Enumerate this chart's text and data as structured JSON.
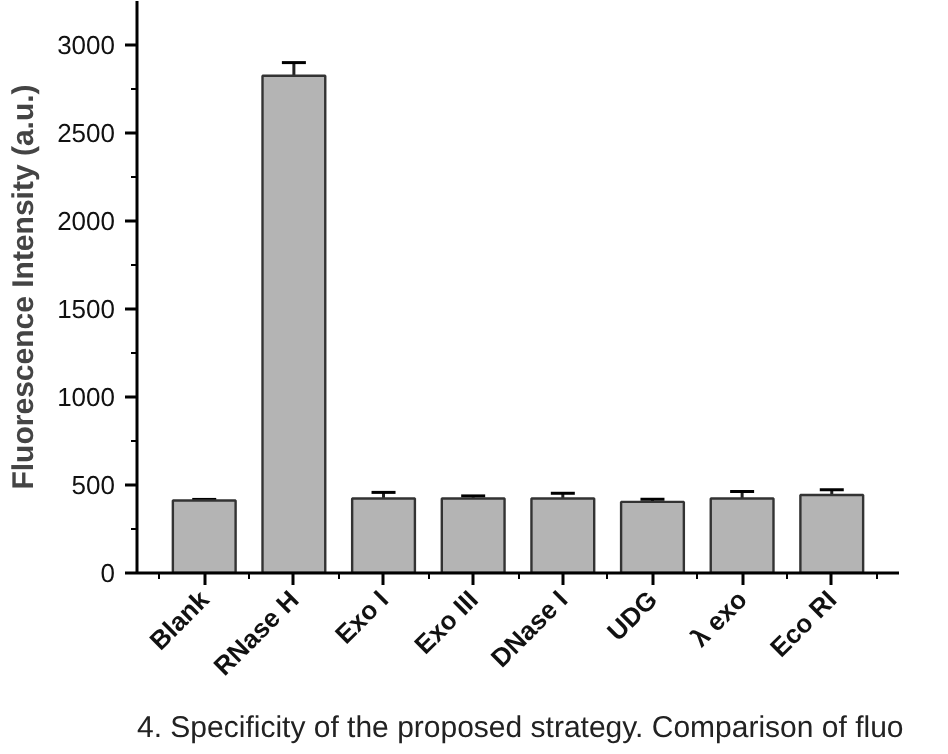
{
  "chart_data": {
    "type": "bar",
    "ylabel": "Fluorescence Intensity (a.u.)",
    "categories": [
      "Blank",
      "RNase H",
      "Exo I",
      "Exo III",
      "DNase I",
      "UDG",
      "λ exo",
      "Eco RI"
    ],
    "values": [
      412,
      2825,
      423,
      423,
      423,
      404,
      423,
      443
    ],
    "errors": [
      [
        412,
        418
      ],
      [
        2825,
        2900
      ],
      [
        423,
        458
      ],
      [
        423,
        438
      ],
      [
        423,
        453
      ],
      [
        404,
        419
      ],
      [
        423,
        463
      ],
      [
        443,
        473
      ]
    ],
    "color": "#b4b4b4",
    "ylim": [
      0,
      3250
    ],
    "yticks": [
      0,
      500,
      1000,
      1500,
      2000,
      2500,
      3000
    ],
    "grid": false,
    "annotations": [
      "4. Specificity of the proposed strategy. Comparison of fluo"
    ]
  }
}
